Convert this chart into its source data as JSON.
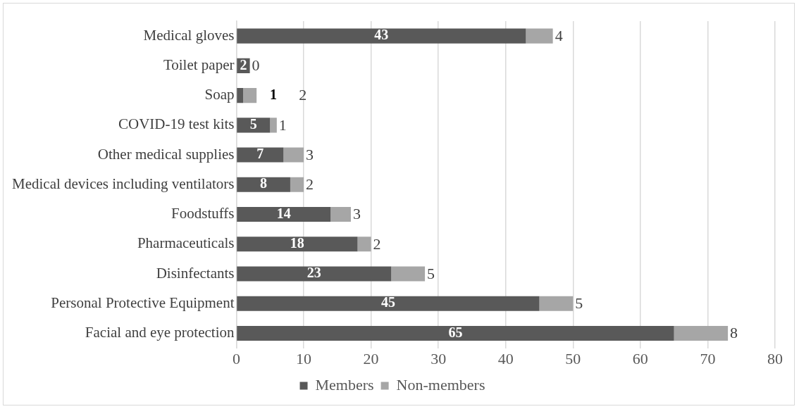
{
  "chart_data": {
    "type": "bar",
    "orientation": "horizontal",
    "stacked": true,
    "categories": [
      "Medical gloves",
      "Toilet paper",
      "Soap",
      "COVID-19 test kits",
      "Other medical supplies",
      "Medical devices including ventilators",
      "Foodstuffs",
      "Pharmaceuticals",
      "Disinfectants",
      "Personal Protective Equipment",
      "Facial and eye protection"
    ],
    "series": [
      {
        "name": "Members",
        "color": "#595959",
        "values": [
          43,
          2,
          1,
          5,
          7,
          8,
          14,
          18,
          23,
          45,
          65
        ]
      },
      {
        "name": "Non-members",
        "color": "#a6a6a6",
        "values": [
          4,
          0,
          2,
          1,
          3,
          2,
          3,
          2,
          5,
          5,
          8
        ]
      }
    ],
    "xlim": [
      0,
      80
    ],
    "xticks": [
      0,
      10,
      20,
      30,
      40,
      50,
      60,
      70,
      80
    ],
    "grid": "x",
    "legend": "bottom",
    "data_labels": true
  }
}
